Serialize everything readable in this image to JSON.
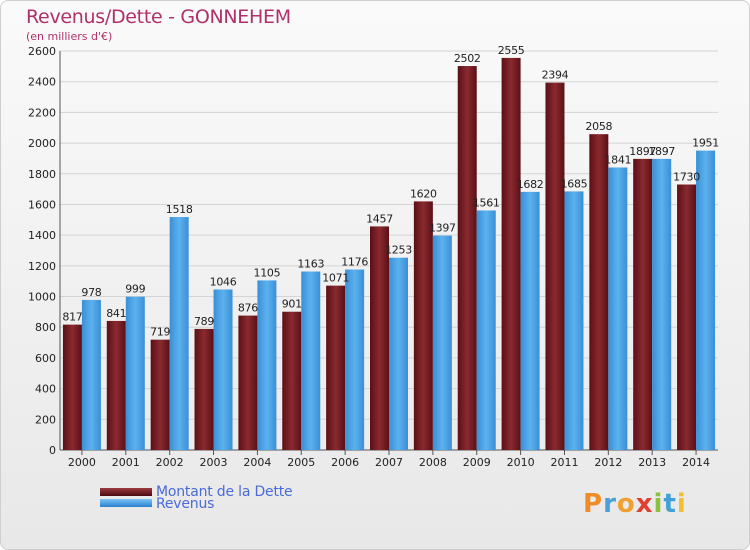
{
  "header": {
    "title": "Revenus/Dette - GONNEHEM",
    "subtitle": "(en milliers d'€)"
  },
  "logo": {
    "letters": [
      "P",
      "r",
      "o",
      "x",
      "i",
      "t",
      "i"
    ],
    "colors": [
      "#f08c28",
      "#4aa0d8",
      "#f0a030",
      "#e04030",
      "#8cc040",
      "#40a0d8",
      "#f0c030"
    ]
  },
  "legend": {
    "items": [
      {
        "label": "Montant de la Dette",
        "color": "#6b1a1f"
      },
      {
        "label": "Revenus",
        "color": "#3e9ae0"
      }
    ]
  },
  "chart_data": {
    "type": "bar",
    "title": "Revenus/Dette - GONNEHEM",
    "subtitle": "(en milliers d'€)",
    "xlabel": "",
    "ylabel": "",
    "ylim": [
      0,
      2600
    ],
    "yticks": [
      0,
      200,
      400,
      600,
      800,
      1000,
      1200,
      1400,
      1600,
      1800,
      2000,
      2200,
      2400,
      2600
    ],
    "grid": true,
    "legend_position": "bottom-left",
    "categories": [
      "2000",
      "2001",
      "2002",
      "2003",
      "2004",
      "2005",
      "2006",
      "2007",
      "2008",
      "2009",
      "2010",
      "2011",
      "2012",
      "2013",
      "2014"
    ],
    "series": [
      {
        "name": "Montant de la Dette",
        "color": "#7a2025",
        "values": [
          817,
          841,
          719,
          789,
          876,
          901,
          1071,
          1457,
          1620,
          2502,
          2555,
          2394,
          2058,
          1897,
          1730
        ],
        "labels": [
          "817",
          "841",
          "719",
          "789",
          "876",
          "901",
          "1071",
          "1457",
          "1620",
          "2502",
          "2555",
          "2394",
          "2058",
          "1897",
          "1730"
        ]
      },
      {
        "name": "Revenus",
        "color": "#4aa4e6",
        "values": [
          978,
          999,
          1518,
          1046,
          1105,
          1163,
          1176,
          1253,
          1397,
          1561,
          1682,
          1685,
          1841,
          1897,
          1951
        ],
        "labels": [
          "978",
          "999",
          "1518",
          "1046",
          "1105",
          "1163",
          "1176",
          "1253",
          "1397",
          "1561",
          "1682",
          "1685",
          "1841",
          "1897",
          "1951"
        ]
      }
    ]
  }
}
